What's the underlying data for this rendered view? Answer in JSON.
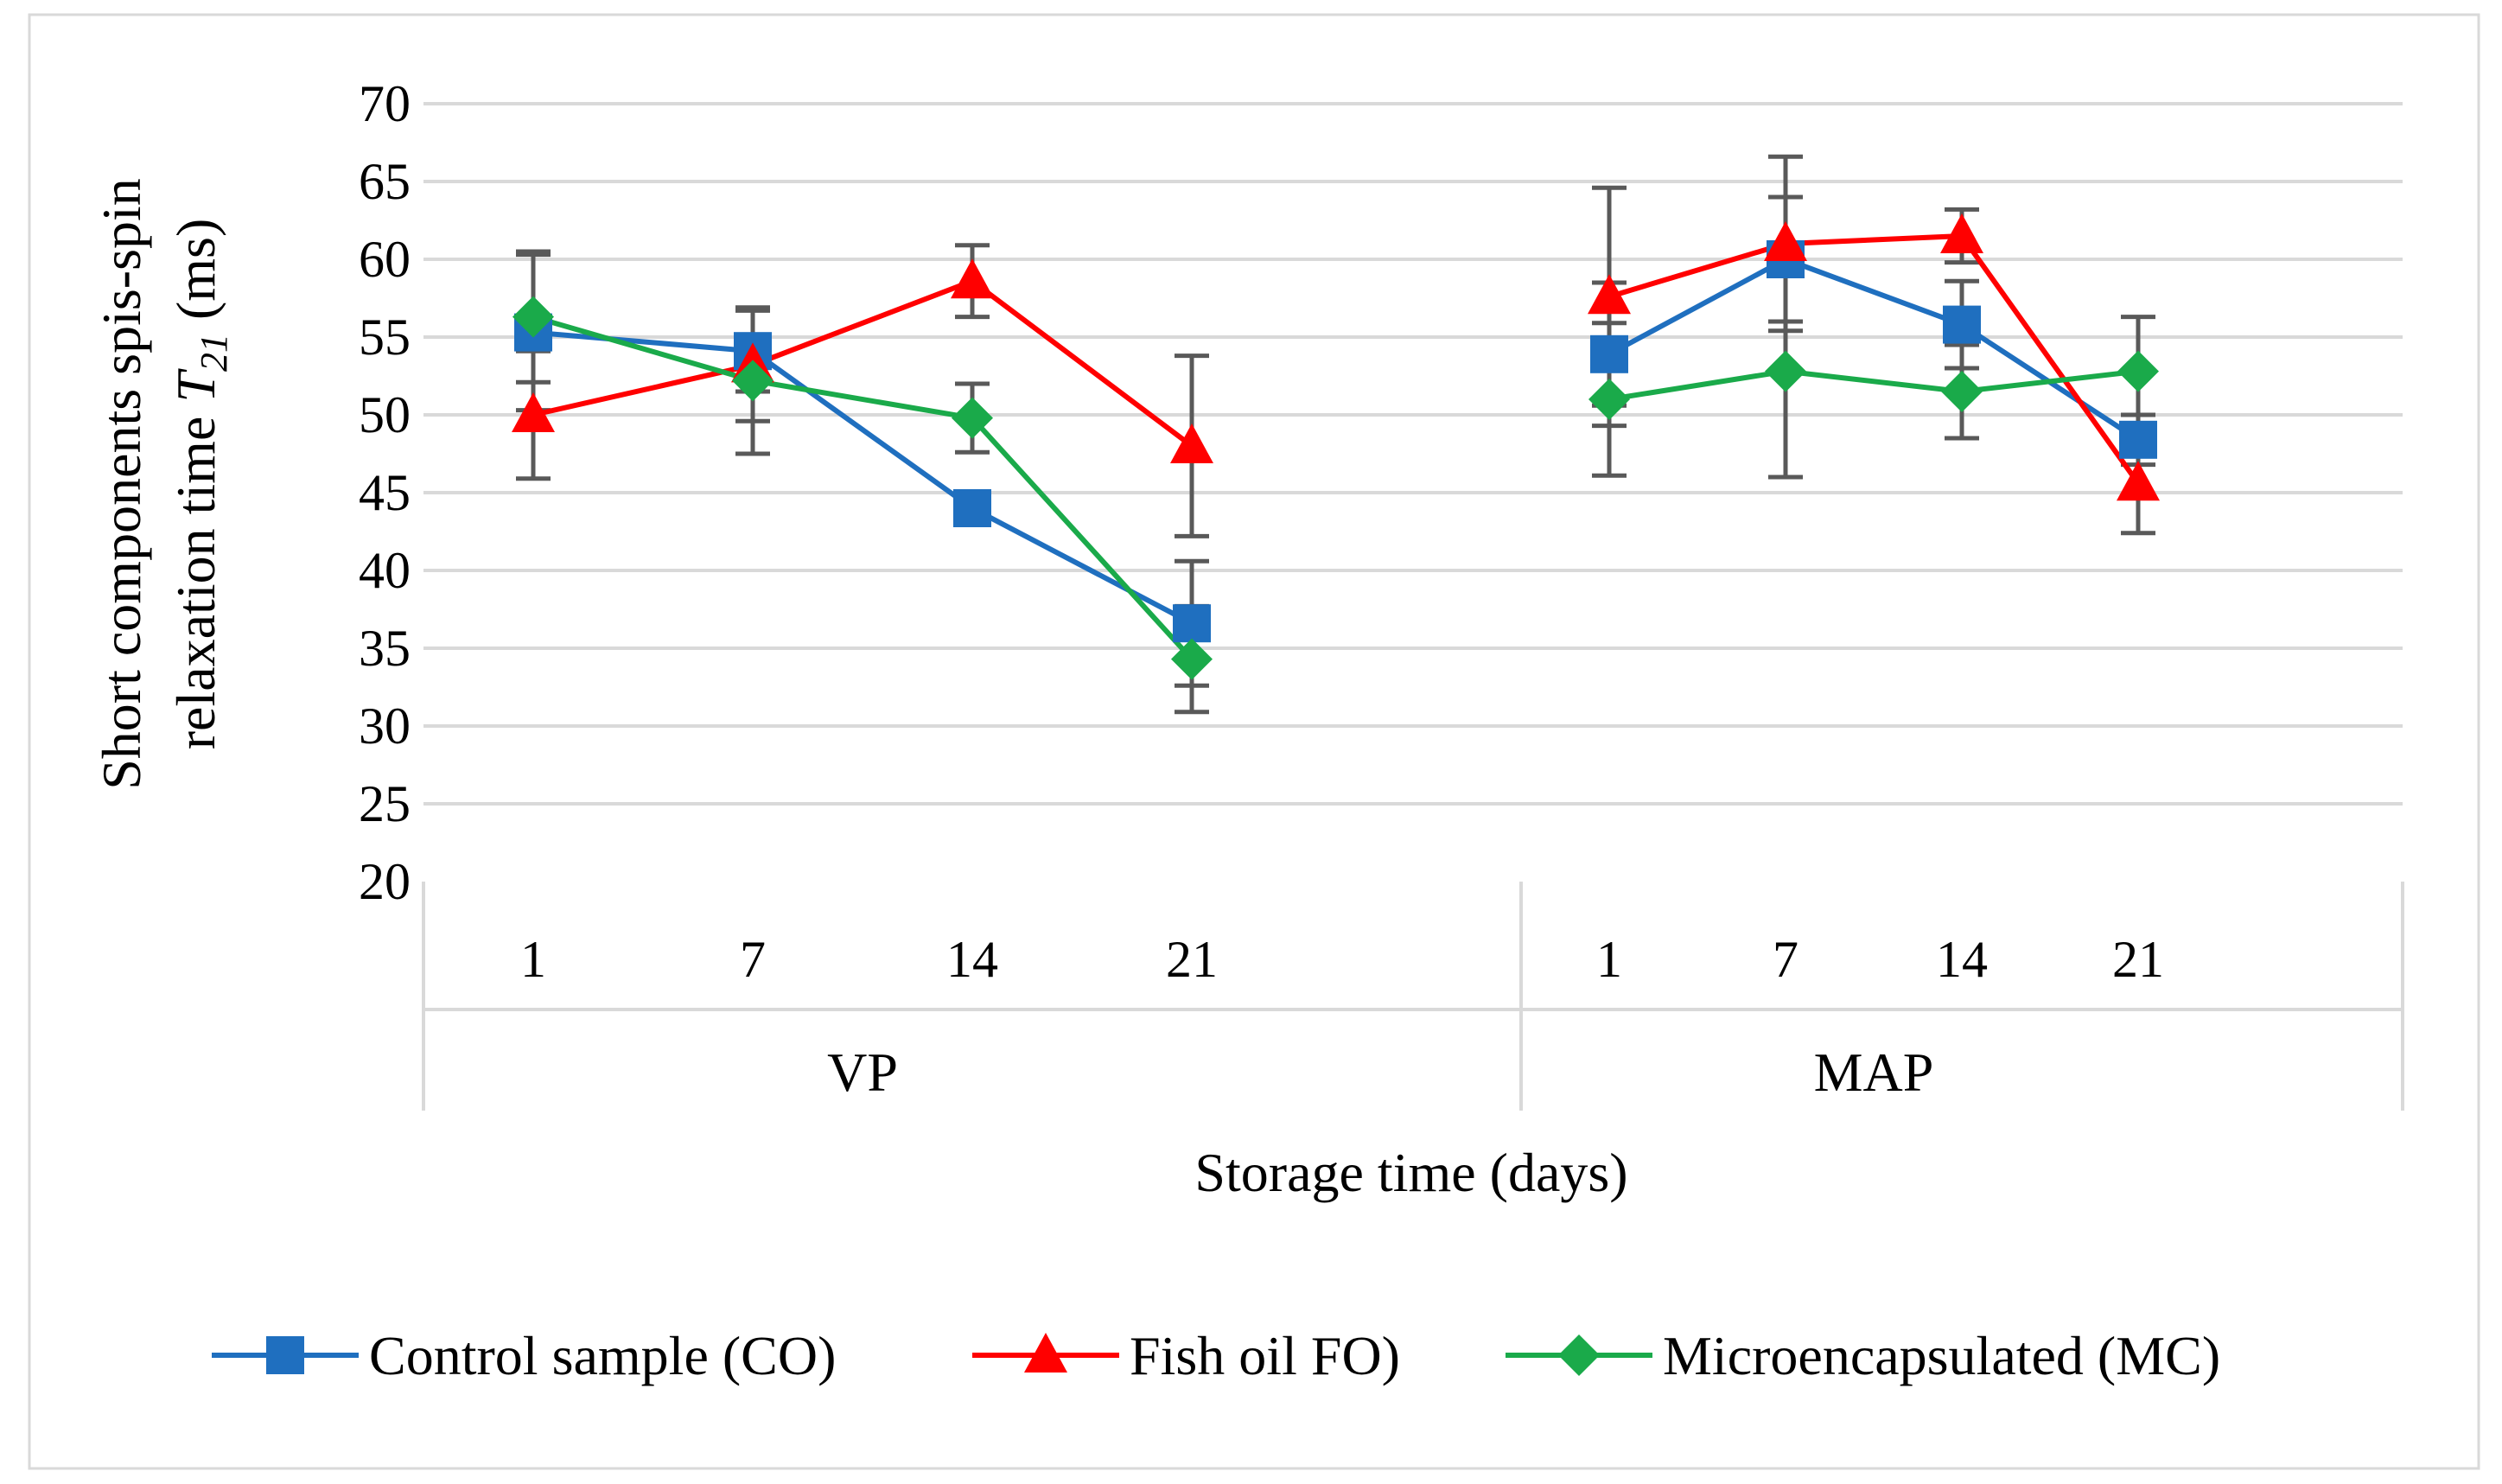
{
  "chart_data": {
    "type": "line",
    "title": "",
    "ylabel_prefix": "Short components spis-spin relaxation time ",
    "ylabel_symbol": "T",
    "ylabel_subscript": "21",
    "ylabel_suffix": " (ms)",
    "ylabel_line1": "Short components spis-spin",
    "ylabel_line2_text": "relaxation time ",
    "ylabel_line2_unit": " (ms)",
    "xlabel": "Storage time (days)",
    "ylim": [
      20,
      70
    ],
    "yticks": [
      20,
      25,
      30,
      35,
      40,
      45,
      50,
      55,
      60,
      65,
      70
    ],
    "groups": [
      {
        "name": "VP",
        "categories": [
          "1",
          "7",
          "14",
          "21"
        ]
      },
      {
        "name": "MAP",
        "categories": [
          "1",
          "7",
          "14",
          "21"
        ]
      }
    ],
    "series": [
      {
        "name": "Control sample (CO)",
        "color": "#1f6fbf",
        "marker": "square",
        "groups": [
          {
            "values": [
              55.3,
              54.1,
              44.0,
              36.6
            ],
            "errors": [
              5.0,
              2.6,
              0,
              4.0
            ]
          },
          {
            "values": [
              53.9,
              60.0,
              55.8,
              48.4
            ],
            "errors": [
              4.6,
              4.0,
              2.8,
              1.6
            ]
          }
        ]
      },
      {
        "name": "Fish oil FO)",
        "color": "#ff0000",
        "marker": "triangle",
        "groups": [
          {
            "values": [
              50.0,
              53.2,
              58.6,
              48.0
            ],
            "errors": [
              4.1,
              3.6,
              2.3,
              5.8
            ]
          },
          {
            "values": [
              57.6,
              61.0,
              61.5,
              45.6
            ],
            "errors": [
              7.0,
              5.6,
              1.7,
              3.2
            ]
          }
        ]
      },
      {
        "name": "Microencapsulated (MC)",
        "color": "#1aaa4a",
        "marker": "diamond",
        "groups": [
          {
            "values": [
              56.3,
              52.2,
              49.8,
              34.3
            ],
            "errors": [
              4.2,
              4.7,
              2.2,
              3.4
            ]
          },
          {
            "values": [
              51.0,
              52.8,
              51.5,
              52.8
            ],
            "errors": [
              4.9,
              6.8,
              3.0,
              3.5
            ]
          }
        ]
      }
    ]
  }
}
